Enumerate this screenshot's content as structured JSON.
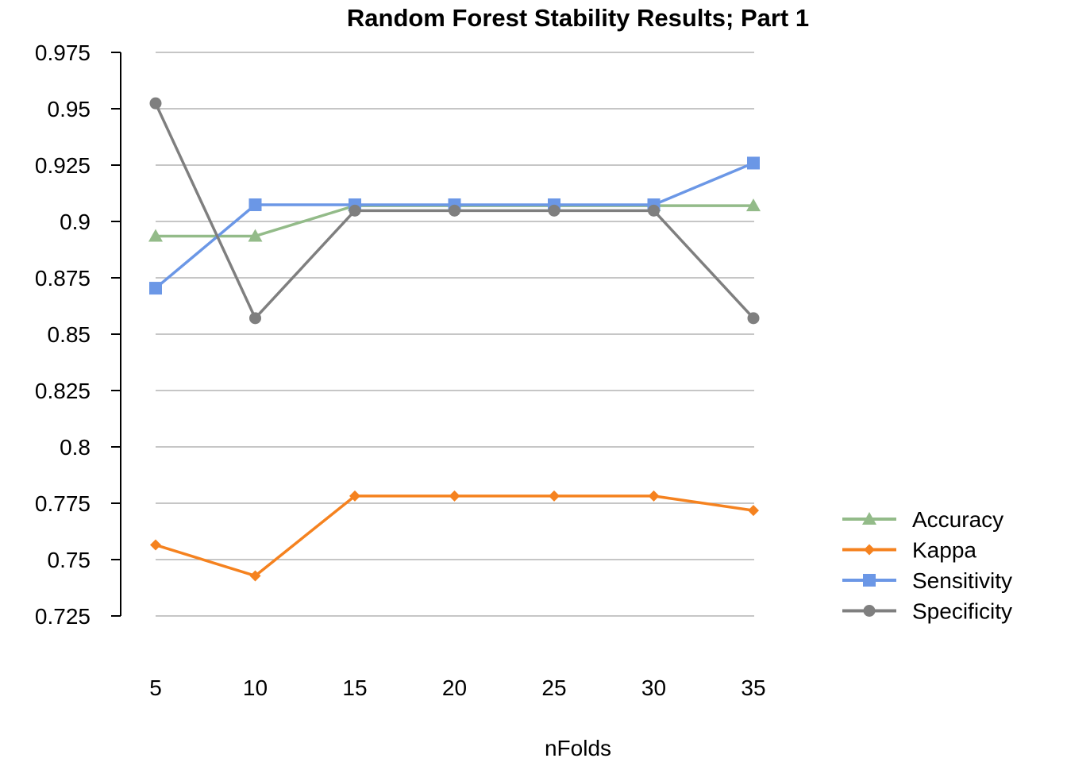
{
  "chart_data": {
    "type": "line",
    "title": "Random Forest Stability Results; Part 1",
    "xlabel": "nFolds",
    "ylabel": "",
    "categories": [
      "5",
      "10",
      "15",
      "20",
      "25",
      "30",
      "35"
    ],
    "ylim": [
      0.725,
      0.975
    ],
    "y_ticks": [
      "0.725",
      "0.75",
      "0.775",
      "0.8",
      "0.825",
      "0.85",
      "0.875",
      "0.9",
      "0.925",
      "0.95",
      "0.975"
    ],
    "grid": true,
    "legend_position": "right",
    "series": [
      {
        "name": "Accuracy",
        "color": "#93bb89",
        "marker": "triangle",
        "values": [
          0.8935,
          0.8935,
          0.907,
          0.907,
          0.907,
          0.907,
          0.907
        ]
      },
      {
        "name": "Kappa",
        "color": "#f5821f",
        "marker": "diamond",
        "values": [
          0.7565,
          0.7428,
          0.7782,
          0.7782,
          0.7782,
          0.7782,
          0.7718
        ]
      },
      {
        "name": "Sensitivity",
        "color": "#6b97e6",
        "marker": "square",
        "values": [
          0.8704,
          0.9074,
          0.9074,
          0.9074,
          0.9074,
          0.9074,
          0.9259
        ]
      },
      {
        "name": "Specificity",
        "color": "#7f7f7f",
        "marker": "circle",
        "values": [
          0.9524,
          0.8571,
          0.9048,
          0.9048,
          0.9048,
          0.9048,
          0.8571
        ]
      }
    ]
  }
}
